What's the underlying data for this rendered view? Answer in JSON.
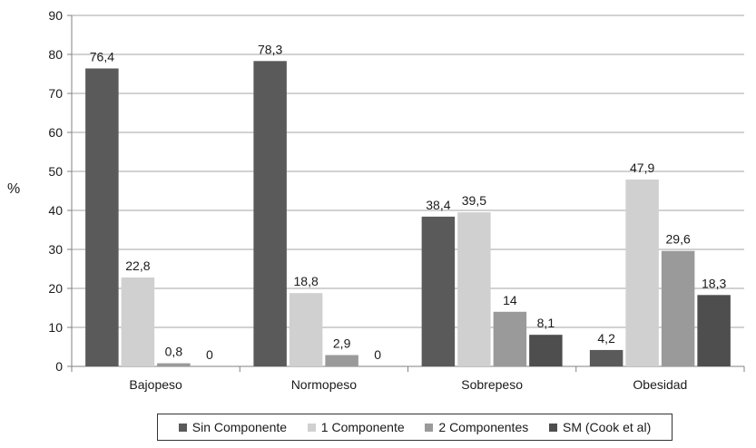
{
  "chart_data": {
    "type": "bar",
    "categories": [
      "Bajopeso",
      "Normopeso",
      "Sobrepeso",
      "Obesidad"
    ],
    "series": [
      {
        "name": "Sin Componente",
        "values": [
          76.4,
          78.3,
          38.4,
          4.2
        ],
        "labels": [
          "76,4",
          "78,3",
          "38,4",
          "4,2"
        ],
        "color": "#5a5a5a"
      },
      {
        "name": "1 Componente",
        "values": [
          22.8,
          18.8,
          39.5,
          47.9
        ],
        "labels": [
          "22,8",
          "18,8",
          "39,5",
          "47,9"
        ],
        "color": "#d0d0d0"
      },
      {
        "name": "2 Componentes",
        "values": [
          0.8,
          2.9,
          14,
          29.6
        ],
        "labels": [
          "0,8",
          "2,9",
          "14",
          "29,6"
        ],
        "color": "#9a9a9a"
      },
      {
        "name": "SM (Cook et al)",
        "values": [
          0,
          0,
          8.1,
          18.3
        ],
        "labels": [
          "0",
          "0",
          "8,1",
          "18,3"
        ],
        "color": "#4e4e4e"
      }
    ],
    "ylabel": "%",
    "xlabel": "",
    "ylim": [
      0,
      90
    ],
    "yticks": [
      0,
      10,
      20,
      30,
      40,
      50,
      60,
      70,
      80,
      90
    ],
    "grid": true,
    "legend_position": "bottom"
  }
}
